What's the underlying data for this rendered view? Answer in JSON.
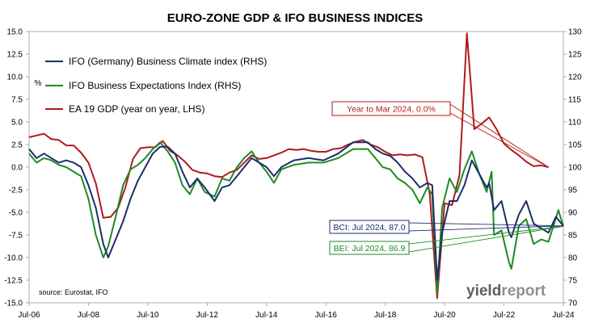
{
  "chart_data": {
    "type": "line",
    "title": "EURO-ZONE GDP & IFO BUSINESS INDICES",
    "source": "source: Eurostat, IFO",
    "logo_text": {
      "yield": "yield",
      "report": "report"
    },
    "x_ticks": [
      "Jul-06",
      "Jul-08",
      "Jul-10",
      "Jul-12",
      "Jul-14",
      "Jul-16",
      "Jul-18",
      "Jul-20",
      "Jul-22",
      "Jul-24"
    ],
    "x_range": [
      "2006-07",
      "2024-07"
    ],
    "left_axis": {
      "ylim": [
        -15.0,
        15.0
      ],
      "ticks": [
        "15.0",
        "12.5",
        "10.0",
        "7.5",
        "5.0",
        "2.5",
        "0.0",
        "-2.5",
        "-5.0",
        "-7.5",
        "-10.0",
        "-12.5",
        "-15.0"
      ],
      "unit_label": "%"
    },
    "right_axis": {
      "ylim": [
        70,
        130
      ],
      "ticks": [
        "130",
        "125",
        "120",
        "115",
        "110",
        "105",
        "100",
        "95",
        "90",
        "85",
        "80",
        "75",
        "70"
      ]
    },
    "grid": false,
    "legend_placement": "top-left",
    "series": [
      {
        "name": "IFO (Germany) Business Climate index (RHS)",
        "axis": "right",
        "color": "#1b2d6b",
        "points": [
          [
            "2006-07",
            104
          ],
          [
            "2006-10",
            102
          ],
          [
            "2007-01",
            103
          ],
          [
            "2007-04",
            102
          ],
          [
            "2007-07",
            101
          ],
          [
            "2007-10",
            101.5
          ],
          [
            "2008-01",
            101
          ],
          [
            "2008-04",
            100
          ],
          [
            "2008-07",
            96
          ],
          [
            "2008-10",
            91
          ],
          [
            "2009-01",
            83
          ],
          [
            "2009-03",
            80
          ],
          [
            "2009-06",
            84
          ],
          [
            "2009-09",
            88
          ],
          [
            "2009-12",
            93
          ],
          [
            "2010-03",
            97
          ],
          [
            "2010-06",
            100
          ],
          [
            "2010-09",
            103
          ],
          [
            "2010-12",
            104.5
          ],
          [
            "2011-03",
            104.5
          ],
          [
            "2011-06",
            103
          ],
          [
            "2011-09",
            99
          ],
          [
            "2011-12",
            95.5
          ],
          [
            "2012-03",
            97.5
          ],
          [
            "2012-06",
            95.5
          ],
          [
            "2012-10",
            92.5
          ],
          [
            "2013-01",
            95.5
          ],
          [
            "2013-04",
            96
          ],
          [
            "2013-07",
            98
          ],
          [
            "2013-10",
            100
          ],
          [
            "2014-01",
            102
          ],
          [
            "2014-04",
            101
          ],
          [
            "2014-07",
            100
          ],
          [
            "2014-10",
            98
          ],
          [
            "2015-01",
            100
          ],
          [
            "2015-06",
            101.5
          ],
          [
            "2015-12",
            102
          ],
          [
            "2016-06",
            101.5
          ],
          [
            "2016-12",
            103
          ],
          [
            "2017-06",
            105.5
          ],
          [
            "2017-12",
            105.5
          ],
          [
            "2018-03",
            104
          ],
          [
            "2018-06",
            103
          ],
          [
            "2018-09",
            102.5
          ],
          [
            "2018-12",
            101
          ],
          [
            "2019-03",
            99
          ],
          [
            "2019-06",
            97.5
          ],
          [
            "2019-09",
            95.5
          ],
          [
            "2019-12",
            96.5
          ],
          [
            "2020-02",
            96
          ],
          [
            "2020-04",
            75
          ],
          [
            "2020-06",
            85.5
          ],
          [
            "2020-09",
            92.5
          ],
          [
            "2020-12",
            92.5
          ],
          [
            "2021-03",
            96
          ],
          [
            "2021-06",
            101.5
          ],
          [
            "2021-09",
            98.5
          ],
          [
            "2021-12",
            95.5
          ],
          [
            "2022-01",
            96.5
          ],
          [
            "2022-03",
            90.5
          ],
          [
            "2022-06",
            92.5
          ],
          [
            "2022-09",
            85.5
          ],
          [
            "2022-10",
            84.5
          ],
          [
            "2023-01",
            89.5
          ],
          [
            "2023-04",
            92.5
          ],
          [
            "2023-07",
            87.5
          ],
          [
            "2023-10",
            86.5
          ],
          [
            "2024-01",
            85.5
          ],
          [
            "2024-04",
            89
          ],
          [
            "2024-07",
            87.0
          ]
        ]
      },
      {
        "name": "IFO Business Expectations Index (RHS)",
        "axis": "right",
        "color": "#1f8a24",
        "points": [
          [
            "2006-07",
            103
          ],
          [
            "2006-10",
            101
          ],
          [
            "2007-01",
            102
          ],
          [
            "2007-04",
            101.5
          ],
          [
            "2007-07",
            100.5
          ],
          [
            "2007-10",
            100
          ],
          [
            "2008-01",
            99
          ],
          [
            "2008-04",
            98
          ],
          [
            "2008-07",
            93
          ],
          [
            "2008-10",
            85
          ],
          [
            "2009-01",
            80
          ],
          [
            "2009-03",
            82.5
          ],
          [
            "2009-06",
            89
          ],
          [
            "2009-09",
            96
          ],
          [
            "2009-12",
            99.5
          ],
          [
            "2010-03",
            100.5
          ],
          [
            "2010-06",
            102
          ],
          [
            "2010-09",
            104
          ],
          [
            "2010-12",
            105.5
          ],
          [
            "2011-03",
            103.5
          ],
          [
            "2011-06",
            101
          ],
          [
            "2011-09",
            96
          ],
          [
            "2011-12",
            94
          ],
          [
            "2012-03",
            97.5
          ],
          [
            "2012-06",
            94.5
          ],
          [
            "2012-10",
            93.5
          ],
          [
            "2013-01",
            97.5
          ],
          [
            "2013-04",
            97
          ],
          [
            "2013-07",
            100
          ],
          [
            "2013-10",
            102
          ],
          [
            "2014-01",
            103.5
          ],
          [
            "2014-04",
            101
          ],
          [
            "2014-07",
            99
          ],
          [
            "2014-10",
            96.5
          ],
          [
            "2015-01",
            99.5
          ],
          [
            "2015-06",
            100.5
          ],
          [
            "2015-12",
            101
          ],
          [
            "2016-06",
            101
          ],
          [
            "2016-12",
            102
          ],
          [
            "2017-06",
            104
          ],
          [
            "2017-12",
            104
          ],
          [
            "2018-03",
            102
          ],
          [
            "2018-06",
            100
          ],
          [
            "2018-09",
            99.5
          ],
          [
            "2018-12",
            97.5
          ],
          [
            "2019-03",
            96.5
          ],
          [
            "2019-06",
            95
          ],
          [
            "2019-09",
            92
          ],
          [
            "2019-12",
            95.5
          ],
          [
            "2020-02",
            94
          ],
          [
            "2020-04",
            72
          ],
          [
            "2020-06",
            91
          ],
          [
            "2020-09",
            97.5
          ],
          [
            "2020-12",
            94.5
          ],
          [
            "2021-03",
            99.5
          ],
          [
            "2021-06",
            103.5
          ],
          [
            "2021-09",
            98.5
          ],
          [
            "2021-12",
            94.5
          ],
          [
            "2022-02",
            99
          ],
          [
            "2022-03",
            85
          ],
          [
            "2022-06",
            86
          ],
          [
            "2022-09",
            79
          ],
          [
            "2022-10",
            77.5
          ],
          [
            "2023-01",
            87
          ],
          [
            "2023-04",
            88.5
          ],
          [
            "2023-07",
            83
          ],
          [
            "2023-10",
            84
          ],
          [
            "2024-01",
            83.5
          ],
          [
            "2024-05",
            90.5
          ],
          [
            "2024-07",
            86.9
          ]
        ]
      },
      {
        "name": "EA 19 GDP (year on year, LHS)",
        "axis": "left",
        "color": "#b01a1a",
        "points": [
          [
            "2006-07",
            3.3
          ],
          [
            "2006-10",
            3.5
          ],
          [
            "2007-01",
            3.7
          ],
          [
            "2007-04",
            3.1
          ],
          [
            "2007-07",
            3.0
          ],
          [
            "2007-10",
            2.4
          ],
          [
            "2008-01",
            2.4
          ],
          [
            "2008-04",
            1.6
          ],
          [
            "2008-07",
            0.5
          ],
          [
            "2008-10",
            -1.8
          ],
          [
            "2009-01",
            -5.6
          ],
          [
            "2009-04",
            -5.5
          ],
          [
            "2009-07",
            -4.5
          ],
          [
            "2009-10",
            -2.2
          ],
          [
            "2010-01",
            0.9
          ],
          [
            "2010-04",
            2.1
          ],
          [
            "2010-07",
            2.2
          ],
          [
            "2010-10",
            2.2
          ],
          [
            "2011-01",
            2.9
          ],
          [
            "2011-04",
            1.8
          ],
          [
            "2011-07",
            1.3
          ],
          [
            "2011-10",
            0.6
          ],
          [
            "2012-01",
            -0.3
          ],
          [
            "2012-04",
            -0.6
          ],
          [
            "2012-07",
            -0.7
          ],
          [
            "2012-10",
            -1.0
          ],
          [
            "2013-01",
            -1.1
          ],
          [
            "2013-04",
            -0.6
          ],
          [
            "2013-07",
            -0.3
          ],
          [
            "2013-10",
            0.5
          ],
          [
            "2014-01",
            1.3
          ],
          [
            "2014-04",
            0.9
          ],
          [
            "2014-07",
            1.0
          ],
          [
            "2014-10",
            1.3
          ],
          [
            "2015-01",
            1.6
          ],
          [
            "2015-04",
            2.0
          ],
          [
            "2015-07",
            1.9
          ],
          [
            "2015-10",
            2.0
          ],
          [
            "2016-01",
            1.8
          ],
          [
            "2016-04",
            1.7
          ],
          [
            "2016-07",
            1.7
          ],
          [
            "2016-10",
            2.0
          ],
          [
            "2017-01",
            2.1
          ],
          [
            "2017-04",
            2.5
          ],
          [
            "2017-07",
            2.8
          ],
          [
            "2017-10",
            3.0
          ],
          [
            "2018-01",
            2.5
          ],
          [
            "2018-04",
            2.2
          ],
          [
            "2018-07",
            1.7
          ],
          [
            "2018-10",
            1.3
          ],
          [
            "2019-01",
            1.4
          ],
          [
            "2019-04",
            1.3
          ],
          [
            "2019-07",
            1.4
          ],
          [
            "2019-10",
            1.1
          ],
          [
            "2020-01",
            -3.0
          ],
          [
            "2020-04",
            -14.5
          ],
          [
            "2020-07",
            -4.0
          ],
          [
            "2020-10",
            -4.2
          ],
          [
            "2021-01",
            -0.9
          ],
          [
            "2021-04",
            14.8
          ],
          [
            "2021-07",
            4.2
          ],
          [
            "2021-10",
            4.8
          ],
          [
            "2022-01",
            5.5
          ],
          [
            "2022-04",
            4.2
          ],
          [
            "2022-07",
            2.6
          ],
          [
            "2022-10",
            1.9
          ],
          [
            "2023-01",
            1.3
          ],
          [
            "2023-04",
            0.6
          ],
          [
            "2023-07",
            0.1
          ],
          [
            "2023-10",
            0.2
          ],
          [
            "2024-01",
            0.0
          ]
        ]
      }
    ],
    "annotations": [
      {
        "id": "gdp",
        "text": "Year to Mar 2024, 0.0%",
        "series": 2,
        "color": "#b01a1a"
      },
      {
        "id": "bci",
        "text": "BCI: Jul 2024, 87.0",
        "series": 0,
        "color": "#1b2d6b"
      },
      {
        "id": "bei",
        "text": "BEI: Jul 2024, 86.9",
        "series": 1,
        "color": "#1f8a24"
      }
    ]
  }
}
